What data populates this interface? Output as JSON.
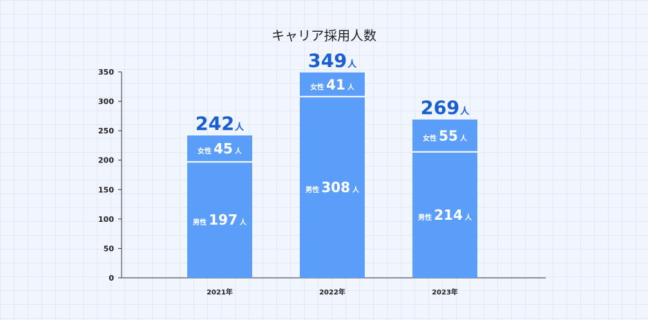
{
  "chart_data": {
    "type": "bar",
    "stacked": true,
    "title": "キャリア採用人数",
    "categories": [
      "2021年",
      "2022年",
      "2023年"
    ],
    "series": [
      {
        "name": "男性",
        "values": [
          197,
          308,
          214
        ]
      },
      {
        "name": "女性",
        "values": [
          45,
          41,
          55
        ]
      }
    ],
    "totals": [
      242,
      349,
      269
    ],
    "unit": "人",
    "ylim": [
      0,
      350
    ],
    "yticks": [
      0,
      50,
      100,
      150,
      200,
      250,
      300,
      350
    ],
    "grid": true,
    "colors": {
      "bar": "#5b9ef9",
      "total_label": "#1a5fd0",
      "segment_label": "#ffffff",
      "segment_divider": "#ffffff",
      "axis": "#333333",
      "text": "#222222"
    }
  }
}
